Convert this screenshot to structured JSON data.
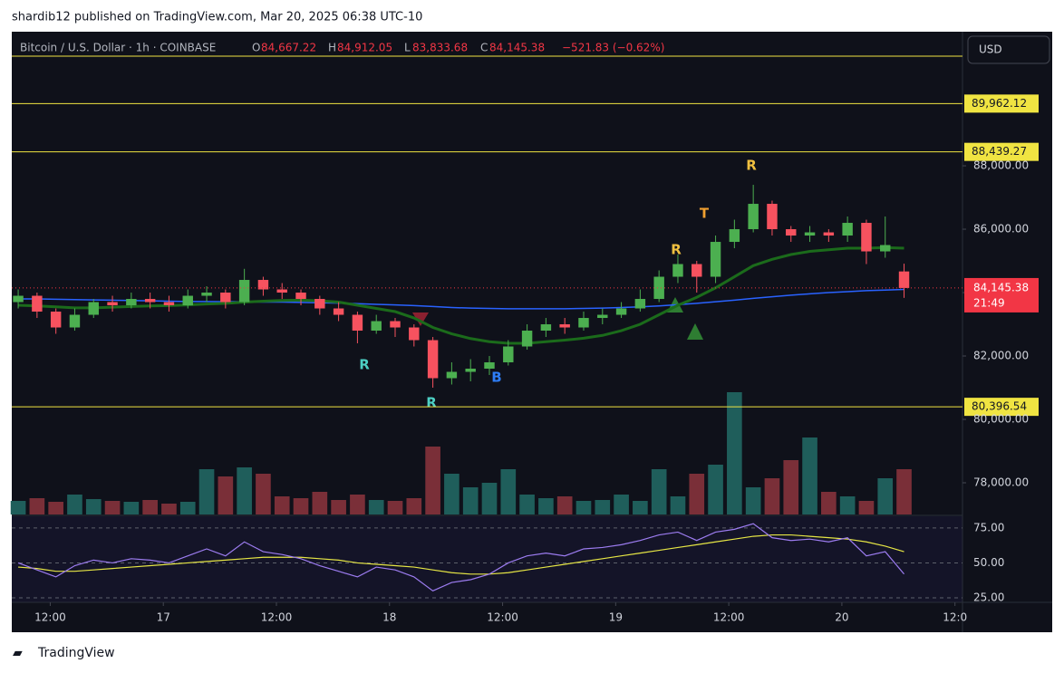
{
  "header": "shardib12 published on TradingView.com, Mar 20, 2025 06:38 UTC-10",
  "footer": "TradingView",
  "currency_button": "USD",
  "chart_data": {
    "type": "candlestick",
    "title": "Bitcoin / U.S. Dollar · 1h · COINBASE",
    "ohlc_label": {
      "o": "O",
      "o_value": "84,667.22",
      "h": "H",
      "h_value": "84,912.05",
      "l": "L",
      "l_value": "83,833.68",
      "c": "C",
      "c_value": "84,145.38",
      "change": "−521.83 (−0.62%)"
    },
    "open": [
      83700,
      83900,
      83400,
      82900,
      83300,
      83700,
      83600,
      83800,
      83700,
      83600,
      83900,
      84000,
      83700,
      84400,
      84100,
      84000,
      83800,
      83500,
      83300,
      82800,
      83100,
      82900,
      82500,
      81300,
      81500,
      81600,
      81800,
      82300,
      82800,
      83000,
      82900,
      83200,
      83300,
      83500,
      83800,
      84500,
      84900,
      84500,
      85600,
      86000,
      86800,
      86000,
      85800,
      85900,
      85800,
      86200,
      85300,
      84667.22
    ],
    "high": [
      84100,
      84000,
      83500,
      83500,
      83800,
      83900,
      84000,
      84000,
      83900,
      84100,
      84200,
      84100,
      84750,
      84500,
      84300,
      84100,
      83900,
      83700,
      83400,
      83300,
      83200,
      83000,
      82600,
      81800,
      81900,
      82000,
      82500,
      83000,
      83200,
      83200,
      83400,
      83500,
      83700,
      84100,
      84700,
      85200,
      85000,
      85800,
      86300,
      87400,
      86900,
      86100,
      86100,
      86000,
      86400,
      86300,
      86400,
      84912.05
    ],
    "low": [
      83500,
      83200,
      82700,
      82800,
      83200,
      83400,
      83500,
      83500,
      83400,
      83500,
      83700,
      83500,
      83600,
      83900,
      83800,
      83600,
      83300,
      83100,
      82400,
      82700,
      82600,
      82300,
      81000,
      81100,
      81200,
      81400,
      81700,
      82200,
      82600,
      82700,
      82800,
      83000,
      83200,
      83400,
      83700,
      84300,
      84000,
      84300,
      85400,
      85900,
      85800,
      85600,
      85600,
      85600,
      85600,
      84900,
      85100,
      83833.68
    ],
    "close": [
      83900,
      83400,
      82900,
      83300,
      83700,
      83600,
      83800,
      83700,
      83600,
      83900,
      84000,
      83700,
      84400,
      84100,
      84000,
      83800,
      83500,
      83300,
      82800,
      83100,
      82900,
      82500,
      81300,
      81500,
      81600,
      81800,
      82300,
      82800,
      83000,
      82900,
      83200,
      83300,
      83500,
      83800,
      84500,
      84900,
      84500,
      85600,
      86000,
      86800,
      86000,
      85800,
      85900,
      85800,
      86200,
      85300,
      85500,
      84145.38
    ],
    "volume": [
      15,
      18,
      14,
      22,
      17,
      15,
      14,
      16,
      12,
      14,
      50,
      42,
      52,
      45,
      20,
      18,
      25,
      16,
      22,
      16,
      15,
      18,
      75,
      45,
      30,
      35,
      50,
      22,
      18,
      20,
      15,
      16,
      22,
      15,
      50,
      20,
      45,
      55,
      135,
      30,
      40,
      60,
      85,
      25,
      20,
      15,
      40,
      50
    ],
    "up_color": "#4caf50",
    "down_color": "#f7525f",
    "volume_up_color": "#1f5e5b",
    "volume_down_color": "#7a2f38",
    "ma_series": [
      {
        "color": "#2962ff",
        "values": [
          83800,
          83800,
          83790,
          83780,
          83770,
          83760,
          83750,
          83740,
          83730,
          83720,
          83720,
          83710,
          83710,
          83700,
          83700,
          83690,
          83680,
          83670,
          83650,
          83630,
          83610,
          83590,
          83560,
          83530,
          83510,
          83500,
          83490,
          83490,
          83490,
          83490,
          83500,
          83510,
          83530,
          83550,
          83580,
          83620,
          83660,
          83710,
          83760,
          83820,
          83870,
          83920,
          83960,
          84000,
          84030,
          84060,
          84080,
          84100
        ]
      },
      {
        "color": "#1b6b1b",
        "values": [
          83600,
          83580,
          83550,
          83520,
          83520,
          83540,
          83560,
          83580,
          83590,
          83610,
          83640,
          83660,
          83700,
          83730,
          83750,
          83760,
          83740,
          83700,
          83600,
          83500,
          83400,
          83200,
          82900,
          82700,
          82550,
          82450,
          82400,
          82400,
          82450,
          82500,
          82560,
          82650,
          82800,
          83000,
          83300,
          83600,
          83850,
          84150,
          84500,
          84850,
          85050,
          85200,
          85300,
          85350,
          85400,
          85400,
          85420,
          85400
        ]
      }
    ],
    "ylim": [
      77000,
      92230
    ],
    "yticks": [
      {
        "value": 78000,
        "label": "78,000.00"
      },
      {
        "value": 80000,
        "label": "80,000.00"
      },
      {
        "value": 82000,
        "label": "82,000.00"
      },
      {
        "value": 84000,
        "label": "84,000.00"
      },
      {
        "value": 86000,
        "label": "86,000.00"
      },
      {
        "value": 88000,
        "label": "88,000.00"
      }
    ],
    "levels": [
      {
        "value": 91457
      },
      {
        "value": 89962.12,
        "label": "89,962.12"
      },
      {
        "value": 88439.27,
        "label": "88,439.27"
      },
      {
        "value": 80396.54,
        "label": "80,396.54"
      }
    ],
    "level_color": "#f0e442",
    "last_price": {
      "value": 84145.38,
      "label": "84,145.38",
      "countdown": "21:49"
    },
    "xlim": [
      -0.34,
      50.1
    ],
    "xticks": [
      {
        "value": 1.7,
        "label": "12:00"
      },
      {
        "value": 7.7,
        "label": "17"
      },
      {
        "value": 13.7,
        "label": "12:00"
      },
      {
        "value": 19.7,
        "label": "18"
      },
      {
        "value": 25.7,
        "label": "12:00"
      },
      {
        "value": 31.7,
        "label": "19"
      },
      {
        "value": 37.7,
        "label": "12:00"
      },
      {
        "value": 43.7,
        "label": "20"
      },
      {
        "value": 49.7,
        "label": "12:0"
      }
    ],
    "annotations": [
      "R",
      "R",
      "B",
      "R",
      "T",
      "R"
    ],
    "rsi": {
      "values": [
        50,
        45,
        40,
        48,
        52,
        50,
        53,
        52,
        50,
        55,
        60,
        55,
        65,
        58,
        56,
        53,
        48,
        44,
        40,
        47,
        45,
        40,
        30,
        36,
        38,
        42,
        50,
        55,
        57,
        55,
        60,
        61,
        63,
        66,
        70,
        72,
        66,
        72,
        74,
        78,
        68,
        66,
        67,
        65,
        68,
        55,
        58,
        42
      ],
      "ma": [
        47,
        46,
        44,
        44,
        45,
        46,
        47,
        48,
        49,
        50,
        51,
        52,
        53,
        54,
        54,
        54,
        53,
        52,
        50,
        49,
        48,
        47,
        45,
        43,
        42,
        42,
        43,
        45,
        47,
        49,
        51,
        53,
        55,
        57,
        59,
        61,
        63,
        65,
        67,
        69,
        70,
        70,
        69,
        68,
        67,
        65,
        62,
        58
      ],
      "color": "#9c7cf0",
      "ma_color": "#e6e645",
      "ylim": [
        21.8,
        83.3
      ],
      "yticks": [
        {
          "value": 75,
          "label": "75.00"
        },
        {
          "value": 50,
          "label": "50.00"
        },
        {
          "value": 25,
          "label": "25.00"
        }
      ]
    }
  }
}
